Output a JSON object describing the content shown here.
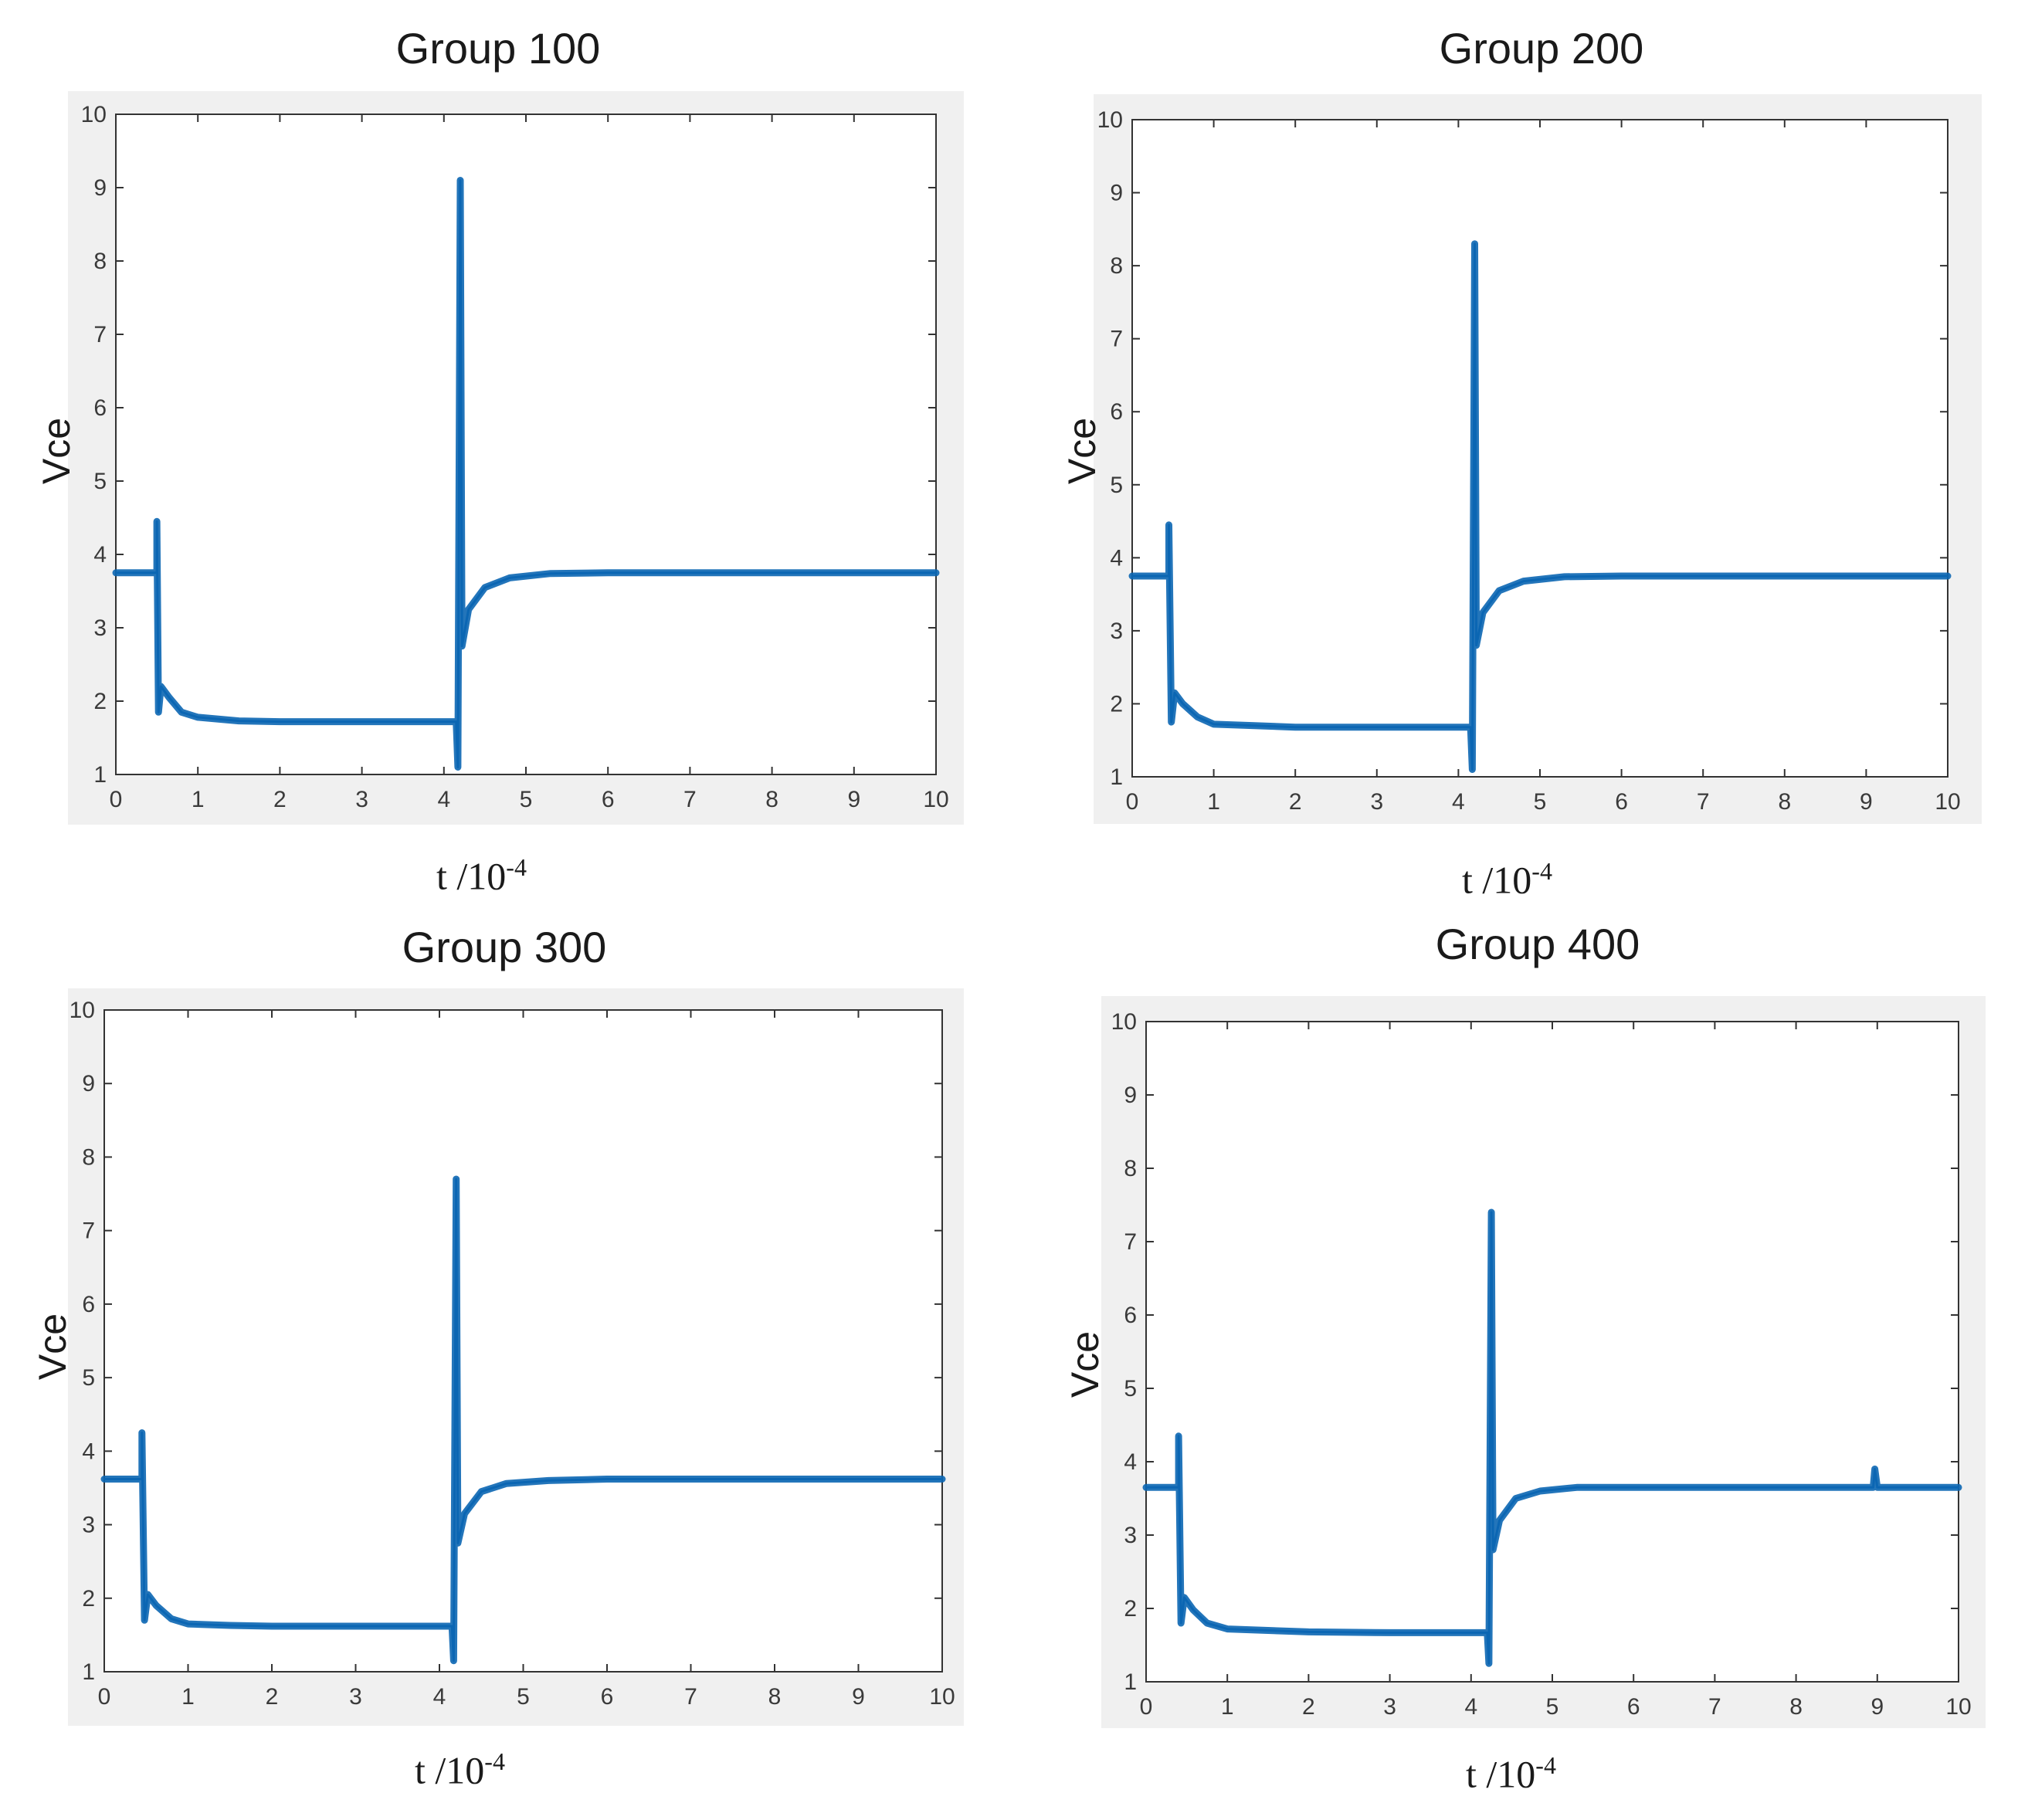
{
  "figure": {
    "charts": [
      "Group 100",
      "Group 200",
      "Group 300",
      "Group 400"
    ]
  },
  "chart_data": [
    {
      "type": "line",
      "title": "Group 100",
      "xlabel_base": "t /10",
      "xlabel_exp": "-4",
      "ylabel": "Vce",
      "xlim": [
        0,
        10
      ],
      "ylim": [
        1,
        10
      ],
      "xticks": [
        0,
        1,
        2,
        3,
        4,
        5,
        6,
        7,
        8,
        9,
        10
      ],
      "yticks": [
        1,
        2,
        3,
        4,
        5,
        6,
        7,
        8,
        9,
        10
      ],
      "series_color": "#0b66b3",
      "series": [
        {
          "name": "Vce",
          "points": [
            [
              0,
              3.75
            ],
            [
              0.5,
              3.75
            ],
            [
              0.5,
              4.45
            ],
            [
              0.52,
              1.85
            ],
            [
              0.55,
              2.2
            ],
            [
              0.65,
              2.05
            ],
            [
              0.8,
              1.85
            ],
            [
              1.0,
              1.78
            ],
            [
              1.5,
              1.73
            ],
            [
              2,
              1.72
            ],
            [
              3,
              1.72
            ],
            [
              4.15,
              1.72
            ],
            [
              4.17,
              1.1
            ],
            [
              4.2,
              9.1
            ],
            [
              4.22,
              2.75
            ],
            [
              4.3,
              3.25
            ],
            [
              4.5,
              3.55
            ],
            [
              4.8,
              3.68
            ],
            [
              5.3,
              3.74
            ],
            [
              6,
              3.75
            ],
            [
              8,
              3.75
            ],
            [
              10,
              3.75
            ]
          ]
        }
      ]
    },
    {
      "type": "line",
      "title": "Group 200",
      "xlabel_base": "t /10",
      "xlabel_exp": "-4",
      "ylabel": "Vce",
      "xlim": [
        0,
        10
      ],
      "ylim": [
        1,
        10
      ],
      "xticks": [
        0,
        1,
        2,
        3,
        4,
        5,
        6,
        7,
        8,
        9,
        10
      ],
      "yticks": [
        1,
        2,
        3,
        4,
        5,
        6,
        7,
        8,
        9,
        10
      ],
      "series_color": "#0b66b3",
      "series": [
        {
          "name": "Vce",
          "points": [
            [
              0,
              3.75
            ],
            [
              0.45,
              3.75
            ],
            [
              0.45,
              4.45
            ],
            [
              0.48,
              1.75
            ],
            [
              0.52,
              2.15
            ],
            [
              0.62,
              2.0
            ],
            [
              0.8,
              1.82
            ],
            [
              1.0,
              1.72
            ],
            [
              1.5,
              1.7
            ],
            [
              2,
              1.68
            ],
            [
              3,
              1.68
            ],
            [
              4.15,
              1.68
            ],
            [
              4.17,
              1.1
            ],
            [
              4.2,
              8.3
            ],
            [
              4.22,
              2.8
            ],
            [
              4.3,
              3.25
            ],
            [
              4.5,
              3.55
            ],
            [
              4.8,
              3.68
            ],
            [
              5.3,
              3.74
            ],
            [
              6,
              3.75
            ],
            [
              8,
              3.75
            ],
            [
              10,
              3.75
            ]
          ]
        }
      ]
    },
    {
      "type": "line",
      "title": "Group 300",
      "xlabel_base": "t /10",
      "xlabel_exp": "-4",
      "ylabel": "Vce",
      "xlim": [
        0,
        10
      ],
      "ylim": [
        1,
        10
      ],
      "xticks": [
        0,
        1,
        2,
        3,
        4,
        5,
        6,
        7,
        8,
        9,
        10
      ],
      "yticks": [
        1,
        2,
        3,
        4,
        5,
        6,
        7,
        8,
        9,
        10
      ],
      "series_color": "#0b66b3",
      "series": [
        {
          "name": "Vce",
          "points": [
            [
              0,
              3.62
            ],
            [
              0.45,
              3.62
            ],
            [
              0.45,
              4.25
            ],
            [
              0.48,
              1.7
            ],
            [
              0.52,
              2.05
            ],
            [
              0.62,
              1.9
            ],
            [
              0.8,
              1.72
            ],
            [
              1.0,
              1.65
            ],
            [
              1.5,
              1.63
            ],
            [
              2,
              1.62
            ],
            [
              3,
              1.62
            ],
            [
              4.15,
              1.62
            ],
            [
              4.17,
              1.15
            ],
            [
              4.2,
              7.7
            ],
            [
              4.22,
              2.75
            ],
            [
              4.3,
              3.15
            ],
            [
              4.5,
              3.45
            ],
            [
              4.8,
              3.56
            ],
            [
              5.3,
              3.6
            ],
            [
              6,
              3.62
            ],
            [
              8,
              3.62
            ],
            [
              10,
              3.62
            ]
          ]
        }
      ]
    },
    {
      "type": "line",
      "title": "Group 400",
      "xlabel_base": "t /10",
      "xlabel_exp": "-4",
      "ylabel": "Vce",
      "xlim": [
        0,
        10
      ],
      "ylim": [
        1,
        10
      ],
      "xticks": [
        0,
        1,
        2,
        3,
        4,
        5,
        6,
        7,
        8,
        9,
        10
      ],
      "yticks": [
        1,
        2,
        3,
        4,
        5,
        6,
        7,
        8,
        9,
        10
      ],
      "series_color": "#0b66b3",
      "series": [
        {
          "name": "Vce",
          "points": [
            [
              0,
              3.65
            ],
            [
              0.4,
              3.65
            ],
            [
              0.4,
              4.35
            ],
            [
              0.43,
              1.8
            ],
            [
              0.47,
              2.15
            ],
            [
              0.58,
              1.98
            ],
            [
              0.75,
              1.8
            ],
            [
              1.0,
              1.72
            ],
            [
              1.5,
              1.7
            ],
            [
              2,
              1.68
            ],
            [
              3,
              1.67
            ],
            [
              4.2,
              1.67
            ],
            [
              4.22,
              1.25
            ],
            [
              4.25,
              7.4
            ],
            [
              4.27,
              2.8
            ],
            [
              4.35,
              3.2
            ],
            [
              4.55,
              3.5
            ],
            [
              4.85,
              3.6
            ],
            [
              5.3,
              3.65
            ],
            [
              6,
              3.65
            ],
            [
              8,
              3.65
            ],
            [
              8.95,
              3.65
            ],
            [
              8.97,
              3.9
            ],
            [
              9,
              3.65
            ],
            [
              10,
              3.65
            ]
          ]
        }
      ]
    }
  ]
}
